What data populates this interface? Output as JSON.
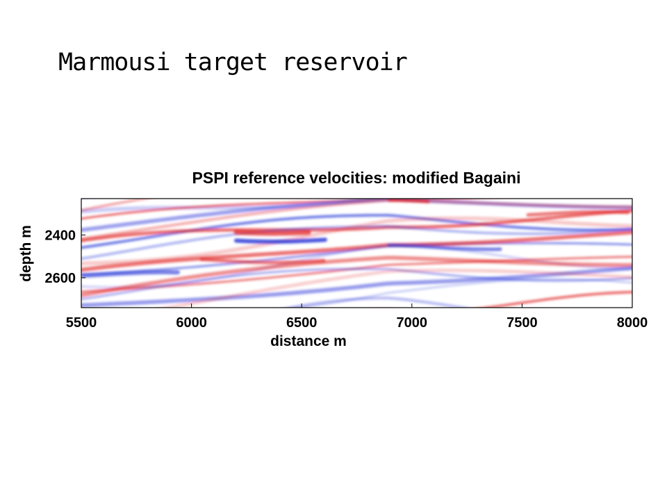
{
  "slide": {
    "title": "Marmousi target reservoir"
  },
  "chart_data": {
    "type": "heatmap",
    "title": "PSPI reference velocities: modified Bagaini",
    "xlabel": "distance m",
    "ylabel": "depth m",
    "xlim": [
      5500,
      8000
    ],
    "ylim": [
      2230,
      2740
    ],
    "y_inverted": true,
    "x_ticks": [
      5500,
      6000,
      6500,
      7000,
      7500,
      8000
    ],
    "y_ticks": [
      2400,
      2600
    ],
    "colormap": [
      "#1f2fd6",
      "#ffffff",
      "#e01f1f"
    ],
    "grid": false,
    "legend": "none"
  }
}
